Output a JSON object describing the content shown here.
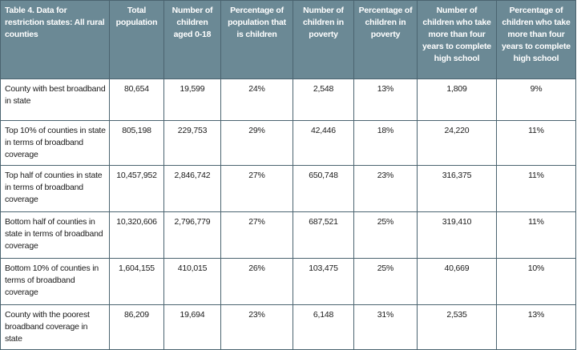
{
  "table": {
    "headers": [
      "Table 4. Data for restriction states: All rural counties",
      "Total population",
      "Number of children aged 0-18",
      "Percentage of population that is children",
      "Number of children in poverty",
      "Percentage of children in poverty",
      "Number of children who take more than four years to complete high school",
      "Percentage of children who take more than four years to complete high school"
    ],
    "rows": [
      [
        "County with best broadband in state",
        "80,654",
        "19,599",
        "24%",
        "2,548",
        "13%",
        "1,809",
        "9%"
      ],
      [
        "Top 10% of counties in state in terms of broadband coverage",
        "805,198",
        "229,753",
        "29%",
        "42,446",
        "18%",
        "24,220",
        "11%"
      ],
      [
        "Top half of counties in state in terms of broadband coverage",
        "10,457,952",
        "2,846,742",
        "27%",
        "650,748",
        "23%",
        "316,375",
        "11%"
      ],
      [
        "Bottom half of counties in state in terms of broadband coverage",
        "10,320,606",
        "2,796,779",
        "27%",
        "687,521",
        "25%",
        "319,410",
        "11%"
      ],
      [
        "Bottom 10% of counties in terms of broadband coverage",
        "1,604,155",
        "410,015",
        "26%",
        "103,475",
        "25%",
        "40,669",
        "10%"
      ],
      [
        "County with the poorest broadband coverage in state",
        "86,209",
        "19,694",
        "23%",
        "6,148",
        "31%",
        "2,535",
        "13%"
      ]
    ]
  },
  "colors": {
    "header_bg": "#6b8995",
    "border": "#4b6470"
  }
}
